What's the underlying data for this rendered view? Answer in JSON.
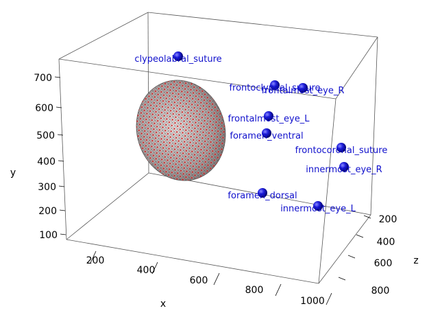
{
  "chart_data": {
    "type": "scatter",
    "title": "",
    "xlabel": "x",
    "ylabel": "y",
    "zlabel": "z",
    "xticks": [
      "200",
      "400",
      "600",
      "800",
      "1000"
    ],
    "yticks": [
      "100",
      "200",
      "300",
      "400",
      "500",
      "600",
      "700"
    ],
    "zticks": [
      "200",
      "400",
      "600",
      "800"
    ],
    "landmarks": [
      {
        "name": "clypeolabral_suture"
      },
      {
        "name": "frontoclypeal_suture"
      },
      {
        "name": "frontalmost_eye_R"
      },
      {
        "name": "frontalmost_eye_L"
      },
      {
        "name": "foramen_ventral"
      },
      {
        "name": "frontocoronal_suture"
      },
      {
        "name": "innermost_eye_R"
      },
      {
        "name": "foramen_dorsal"
      },
      {
        "name": "innermost_eye_L"
      }
    ],
    "colors": {
      "landmark": "#1010cc",
      "label": "#1010cc",
      "mesh_points": "#cc2222",
      "mesh_wire": "#222222",
      "box": "#000000"
    }
  }
}
